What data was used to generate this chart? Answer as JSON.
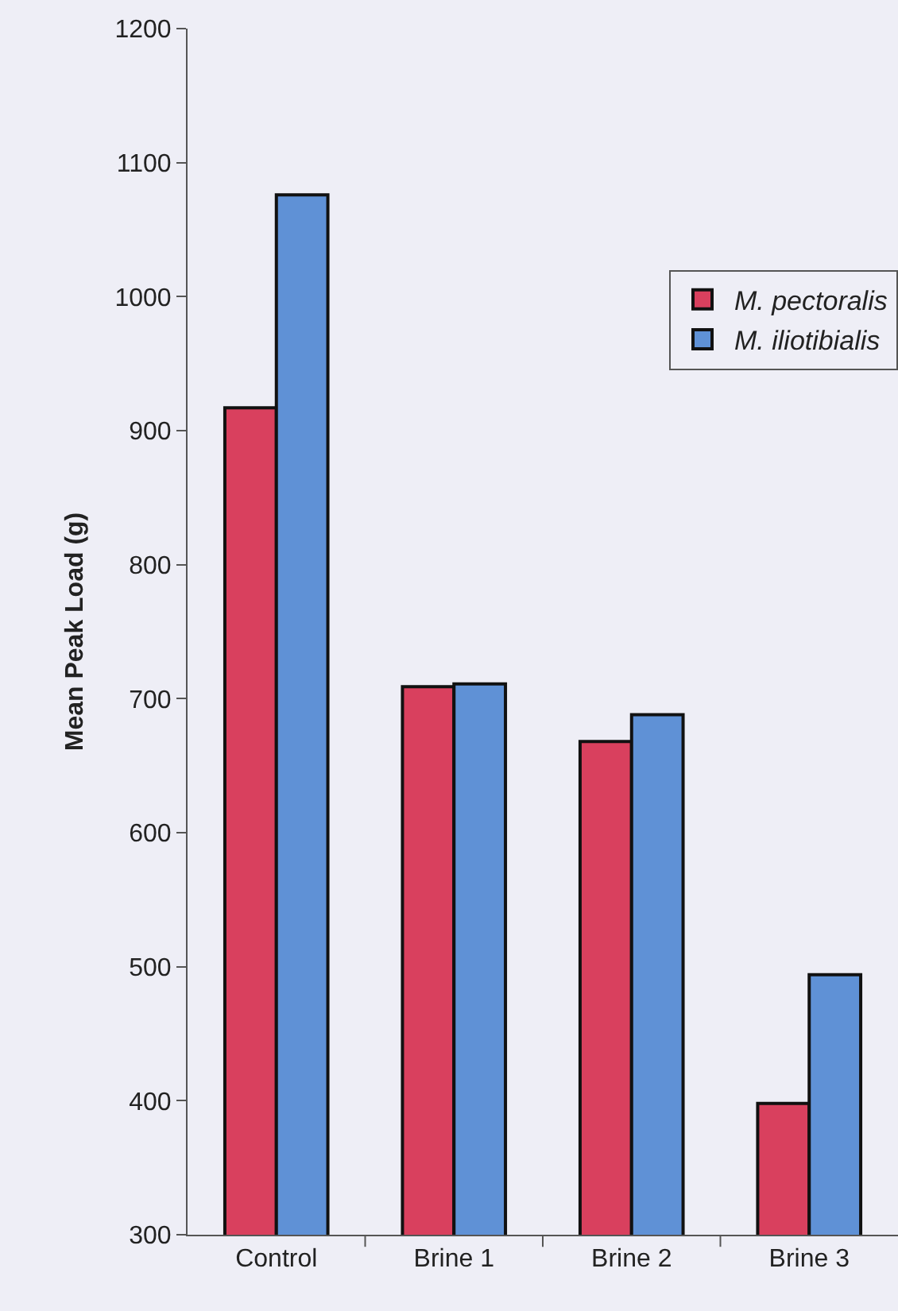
{
  "chart_data": {
    "type": "bar",
    "ylabel": "Mean Peak Load (g)",
    "categories": [
      "Control",
      "Brine 1",
      "Brine 2",
      "Brine 3"
    ],
    "series": [
      {
        "name": "M. pectoralis",
        "color": "#d9405e",
        "values": [
          917,
          709,
          668,
          398
        ]
      },
      {
        "name": "M. iliotibialis",
        "color": "#5f91d6",
        "values": [
          1076,
          711,
          688,
          494
        ]
      }
    ],
    "ylim": [
      300,
      1200
    ],
    "yticks": [
      300,
      400,
      500,
      600,
      700,
      800,
      900,
      1000,
      1100,
      1200
    ],
    "grid": false,
    "legend": "top right"
  }
}
